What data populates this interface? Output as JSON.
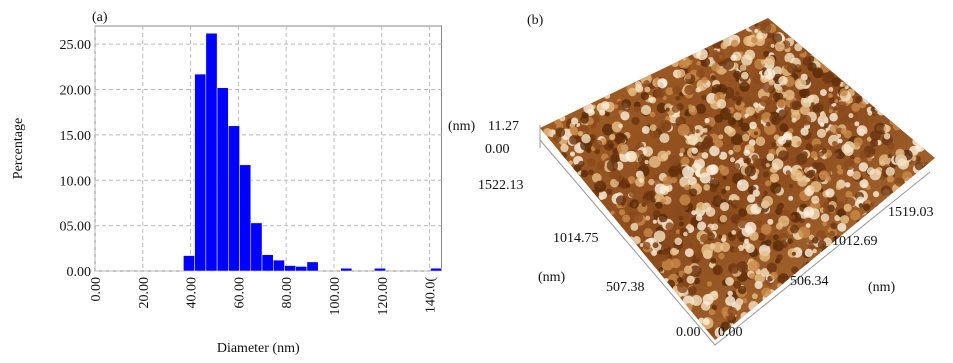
{
  "chart_data": {
    "type": "histogram",
    "title": "(a)",
    "x_label": "Diameter (nm)",
    "y_label": "Percentage",
    "bins": [
      37,
      41.7,
      46.4,
      51.1,
      55.8,
      60.5,
      65.2,
      69.9,
      74.6,
      79.3,
      84,
      88.7,
      93.4,
      98.1,
      102.8,
      107.5,
      112.2,
      116.9,
      121.6,
      126.3,
      131,
      135.7,
      140.4,
      145.1
    ],
    "values": [
      1.7,
      21.7,
      26.2,
      20.2,
      16.0,
      11.7,
      5.3,
      1.8,
      1.2,
      0.6,
      0.5,
      1.0,
      0,
      0,
      0.3,
      0,
      0,
      0.3,
      0,
      0,
      0,
      0,
      0.3
    ],
    "color": "#0000ff",
    "xlim": [
      0,
      145
    ],
    "ylim": [
      0,
      27
    ],
    "xticks": [
      {
        "value": 0,
        "label": "0.00"
      },
      {
        "value": 20,
        "label": "20.00"
      },
      {
        "value": 40,
        "label": "40.00"
      },
      {
        "value": 60,
        "label": "60.00"
      },
      {
        "value": 80,
        "label": "80.00"
      },
      {
        "value": 100,
        "label": "100.00"
      },
      {
        "value": 120,
        "label": "120.00"
      },
      {
        "value": 140,
        "label": "140.0("
      }
    ],
    "yticks": [
      {
        "value": 0,
        "label": "0.00"
      },
      {
        "value": 5,
        "label": "05.00"
      },
      {
        "value": 10,
        "label": "10.00"
      },
      {
        "value": 15,
        "label": "15.00"
      },
      {
        "value": 20,
        "label": "20.00"
      },
      {
        "value": 25,
        "label": "25.00"
      }
    ],
    "grid": true
  },
  "panel_b": {
    "label": "(b)",
    "z_unit": "(nm)",
    "z_max": "11.27",
    "z_min": "0.00",
    "left_axis": {
      "unit": "(nm)",
      "ticks": [
        "1522.13",
        "1014.75",
        "507.38",
        "0.00"
      ]
    },
    "right_axis": {
      "unit": "(nm)",
      "ticks": [
        "0.00",
        "506.34",
        "1012.69",
        "1519.03"
      ]
    }
  }
}
